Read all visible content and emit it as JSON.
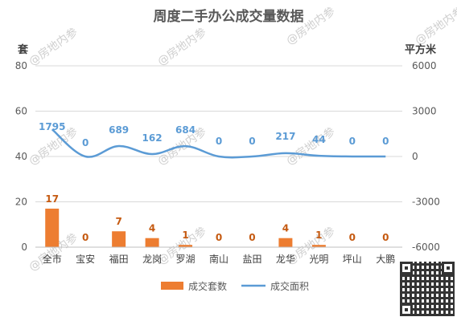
{
  "chart_data": {
    "type": "bar+line",
    "title": "周度二手办公成交量数据",
    "left_axis_label": "套",
    "right_axis_label": "平方米",
    "categories": [
      "全市",
      "宝安",
      "福田",
      "龙岗",
      "罗湖",
      "南山",
      "盐田",
      "龙华",
      "光明",
      "坪山",
      "大鹏"
    ],
    "series": [
      {
        "name": "成交套数",
        "type": "bar",
        "axis": "left",
        "color": "#ED7D31",
        "values": [
          17,
          0,
          7,
          4,
          1,
          0,
          0,
          4,
          1,
          0,
          0
        ]
      },
      {
        "name": "成交面积",
        "type": "line",
        "axis": "right",
        "color": "#5B9BD5",
        "values": [
          1795,
          0,
          689,
          162,
          684,
          0,
          0,
          217,
          44,
          0,
          0
        ]
      }
    ],
    "left_ylim": [
      0,
      80
    ],
    "left_ticks": [
      "0",
      "20",
      "40",
      "60",
      "80"
    ],
    "right_ylim": [
      -6000,
      6000
    ],
    "right_ticks": [
      "-6000",
      "-3000",
      "0",
      "3000",
      "6000"
    ],
    "grid": true,
    "legend_position": "bottom",
    "watermark": "@房地内参"
  }
}
